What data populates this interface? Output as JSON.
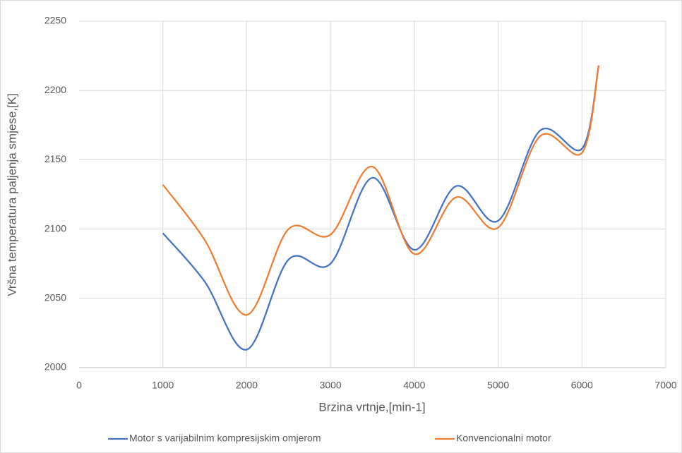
{
  "chart_data": {
    "type": "line",
    "x_label": "Brzina vrtnje,[min-1]",
    "y_label": "Vršna temperatura paljenja smjese,[K]",
    "x": [
      1000,
      1500,
      2000,
      2500,
      3000,
      3500,
      4000,
      4500,
      5000,
      5500,
      6000,
      6200
    ],
    "series": [
      {
        "name": "Motor s varijabilnim kompresijskim omjerom",
        "color": "#4472c4",
        "values": [
          2097,
          2062,
          2013,
          2078,
          2075,
          2137,
          2085,
          2131,
          2106,
          2171,
          2158,
          2218
        ]
      },
      {
        "name": "Konvencionalni motor",
        "color": "#ed7d31",
        "values": [
          2132,
          2092,
          2038,
          2100,
          2096,
          2145,
          2082,
          2123,
          2101,
          2167,
          2155,
          2218
        ]
      }
    ],
    "xlim": [
      0,
      7000
    ],
    "xticks": [
      0,
      1000,
      2000,
      3000,
      4000,
      5000,
      6000,
      7000
    ],
    "ylim": [
      2000,
      2250
    ],
    "yticks": [
      2000,
      2050,
      2100,
      2150,
      2200,
      2250
    ],
    "grid": true,
    "smooth": true,
    "legend": "bottom"
  }
}
